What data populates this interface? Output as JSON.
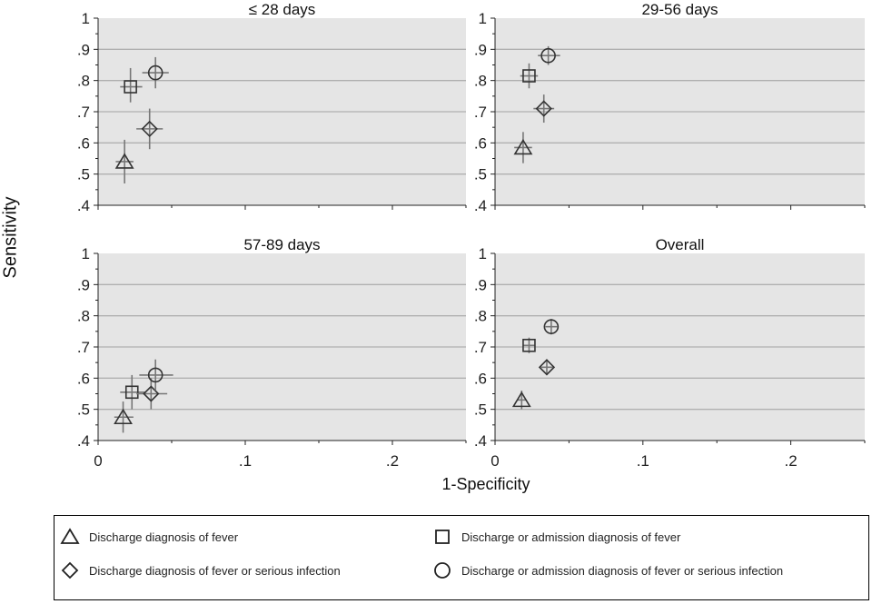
{
  "chart_data": {
    "type": "scatter",
    "xlabel": "1-Specificity",
    "ylabel": "Sensitivity",
    "xlim": [
      0,
      0.25
    ],
    "ylim": [
      0.4,
      1.0
    ],
    "x_ticks": [
      "0",
      ".1",
      ".2"
    ],
    "y_ticks": [
      ".4",
      ".5",
      ".6",
      ".7",
      ".8",
      ".9",
      "1"
    ],
    "grid": true,
    "legend_position": "bottom",
    "panels": [
      {
        "title": "≤ 28 days",
        "points": [
          {
            "series": "Discharge diagnosis of fever",
            "x": 0.018,
            "y": 0.54,
            "y_lo": 0.47,
            "y_hi": 0.61,
            "x_lo": 0.012,
            "x_hi": 0.024
          },
          {
            "series": "Discharge or admission diagnosis of fever",
            "x": 0.022,
            "y": 0.78,
            "y_lo": 0.73,
            "y_hi": 0.84,
            "x_lo": 0.015,
            "x_hi": 0.03
          },
          {
            "series": "Discharge diagnosis of fever or serious infection",
            "x": 0.035,
            "y": 0.645,
            "y_lo": 0.58,
            "y_hi": 0.71,
            "x_lo": 0.026,
            "x_hi": 0.044
          },
          {
            "series": "Discharge or admission diagnosis of fever or serious infection",
            "x": 0.039,
            "y": 0.825,
            "y_lo": 0.775,
            "y_hi": 0.875,
            "x_lo": 0.03,
            "x_hi": 0.048
          }
        ]
      },
      {
        "title": "29-56 days",
        "points": [
          {
            "series": "Discharge diagnosis of fever",
            "x": 0.019,
            "y": 0.585,
            "y_lo": 0.535,
            "y_hi": 0.635,
            "x_lo": 0.013,
            "x_hi": 0.025
          },
          {
            "series": "Discharge or admission diagnosis of fever",
            "x": 0.023,
            "y": 0.815,
            "y_lo": 0.775,
            "y_hi": 0.855,
            "x_lo": 0.017,
            "x_hi": 0.029
          },
          {
            "series": "Discharge diagnosis of fever or serious infection",
            "x": 0.033,
            "y": 0.71,
            "y_lo": 0.665,
            "y_hi": 0.755,
            "x_lo": 0.026,
            "x_hi": 0.04
          },
          {
            "series": "Discharge or admission diagnosis of fever or serious infection",
            "x": 0.036,
            "y": 0.88,
            "y_lo": 0.85,
            "y_hi": 0.91,
            "x_lo": 0.029,
            "x_hi": 0.044
          }
        ]
      },
      {
        "title": "57-89 days",
        "points": [
          {
            "series": "Discharge diagnosis of fever",
            "x": 0.017,
            "y": 0.475,
            "y_lo": 0.425,
            "y_hi": 0.525,
            "x_lo": 0.011,
            "x_hi": 0.024
          },
          {
            "series": "Discharge or admission diagnosis of fever",
            "x": 0.023,
            "y": 0.555,
            "y_lo": 0.5,
            "y_hi": 0.61,
            "x_lo": 0.015,
            "x_hi": 0.032
          },
          {
            "series": "Discharge diagnosis of fever or serious infection",
            "x": 0.036,
            "y": 0.55,
            "y_lo": 0.5,
            "y_hi": 0.6,
            "x_lo": 0.026,
            "x_hi": 0.047
          },
          {
            "series": "Discharge or admission diagnosis of fever or serious infection",
            "x": 0.039,
            "y": 0.61,
            "y_lo": 0.56,
            "y_hi": 0.66,
            "x_lo": 0.028,
            "x_hi": 0.051
          }
        ]
      },
      {
        "title": "Overall",
        "points": [
          {
            "series": "Discharge diagnosis of fever",
            "x": 0.018,
            "y": 0.53,
            "y_lo": 0.5,
            "y_hi": 0.56,
            "x_lo": 0.015,
            "x_hi": 0.021
          },
          {
            "series": "Discharge or admission diagnosis of fever",
            "x": 0.023,
            "y": 0.705,
            "y_lo": 0.68,
            "y_hi": 0.73,
            "x_lo": 0.019,
            "x_hi": 0.027
          },
          {
            "series": "Discharge diagnosis of fever or serious infection",
            "x": 0.035,
            "y": 0.635,
            "y_lo": 0.61,
            "y_hi": 0.66,
            "x_lo": 0.031,
            "x_hi": 0.039
          },
          {
            "series": "Discharge or admission diagnosis of fever or serious infection",
            "x": 0.038,
            "y": 0.765,
            "y_lo": 0.74,
            "y_hi": 0.79,
            "x_lo": 0.034,
            "x_hi": 0.042
          }
        ]
      }
    ],
    "series": [
      {
        "name": "Discharge diagnosis of fever",
        "marker": "triangle"
      },
      {
        "name": "Discharge or admission diagnosis of fever",
        "marker": "square"
      },
      {
        "name": "Discharge diagnosis of fever or serious infection",
        "marker": "diamond"
      },
      {
        "name": "Discharge or admission diagnosis of fever or serious infection",
        "marker": "circle"
      }
    ],
    "colors": {
      "panel_bg": "#e5e5e5",
      "grid": "#b0b0b0",
      "marker": "#333333",
      "ci": "#777777"
    }
  }
}
